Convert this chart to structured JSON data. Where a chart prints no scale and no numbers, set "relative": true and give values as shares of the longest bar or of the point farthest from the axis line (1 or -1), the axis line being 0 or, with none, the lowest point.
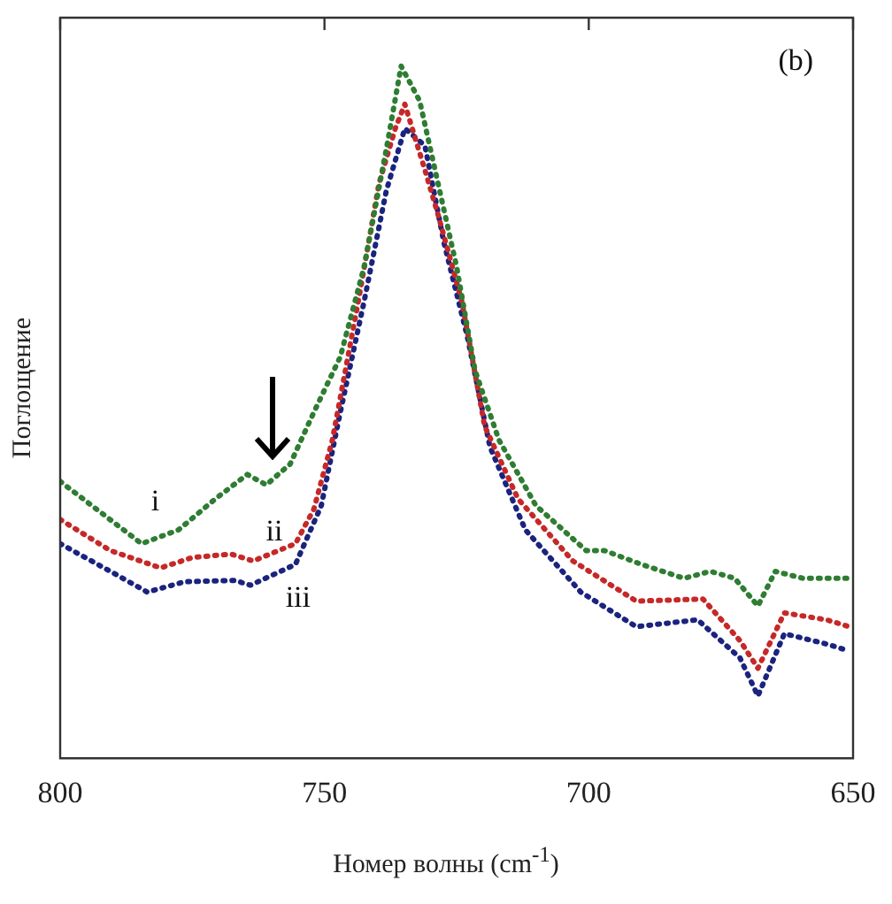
{
  "chart_data": {
    "type": "line",
    "xlabel": "Номер волны (cm$^{-1}$)",
    "ylabel": "Поглощение",
    "relative": true,
    "xlim": [
      800,
      650
    ],
    "xticks": [
      800,
      750,
      700,
      650
    ],
    "grid": false,
    "legend": false,
    "marker": "none",
    "line_style": "dotted",
    "annotations": [
      "(b)",
      "i",
      "ii",
      "iii"
    ],
    "series": [
      {
        "color": "#2e7d32",
        "x": [
          800,
          784.6,
          777.6,
          770.6,
          764.6,
          761,
          756.5,
          752,
          747,
          742.5,
          738.3,
          735.5,
          732,
          725,
          721.5,
          717,
          710,
          700.5,
          697,
          690,
          682,
          677,
          672.4,
          668,
          664.7,
          659.5,
          650.7
        ],
        "values": [
          0.4,
          0.31,
          0.33,
          0.375,
          0.41,
          0.395,
          0.425,
          0.5,
          0.58,
          0.71,
          0.88,
          1.0,
          0.95,
          0.71,
          0.56,
          0.46,
          0.365,
          0.3,
          0.3,
          0.28,
          0.26,
          0.27,
          0.26,
          0.22,
          0.27,
          0.26,
          0.26
        ]
      },
      {
        "color": "#c62828",
        "x": [
          800,
          790.5,
          781,
          775,
          767.7,
          763.5,
          755.5,
          752,
          748.5,
          743.6,
          739.7,
          736.6,
          734.8,
          731,
          728.5,
          724,
          719.7,
          713.4,
          703,
          691,
          678.4,
          671.4,
          668,
          663,
          655,
          650.7
        ],
        "values": [
          0.345,
          0.3,
          0.275,
          0.29,
          0.295,
          0.285,
          0.31,
          0.36,
          0.46,
          0.66,
          0.83,
          0.91,
          0.945,
          0.85,
          0.785,
          0.66,
          0.48,
          0.375,
          0.285,
          0.227,
          0.23,
          0.17,
          0.13,
          0.21,
          0.2,
          0.19
        ]
      },
      {
        "color": "#1a237e",
        "x": [
          800,
          790.5,
          783.5,
          776.5,
          767,
          764,
          755.5,
          750.6,
          747,
          742.5,
          738.3,
          734.8,
          731,
          727.4,
          723,
          718.7,
          712,
          701.5,
          691,
          679.4,
          671.4,
          668,
          663,
          655,
          650.7
        ],
        "values": [
          0.31,
          0.27,
          0.24,
          0.255,
          0.257,
          0.25,
          0.28,
          0.365,
          0.5,
          0.66,
          0.82,
          0.91,
          0.885,
          0.745,
          0.61,
          0.45,
          0.33,
          0.24,
          0.19,
          0.2,
          0.145,
          0.09,
          0.18,
          0.165,
          0.155
        ]
      }
    ]
  }
}
